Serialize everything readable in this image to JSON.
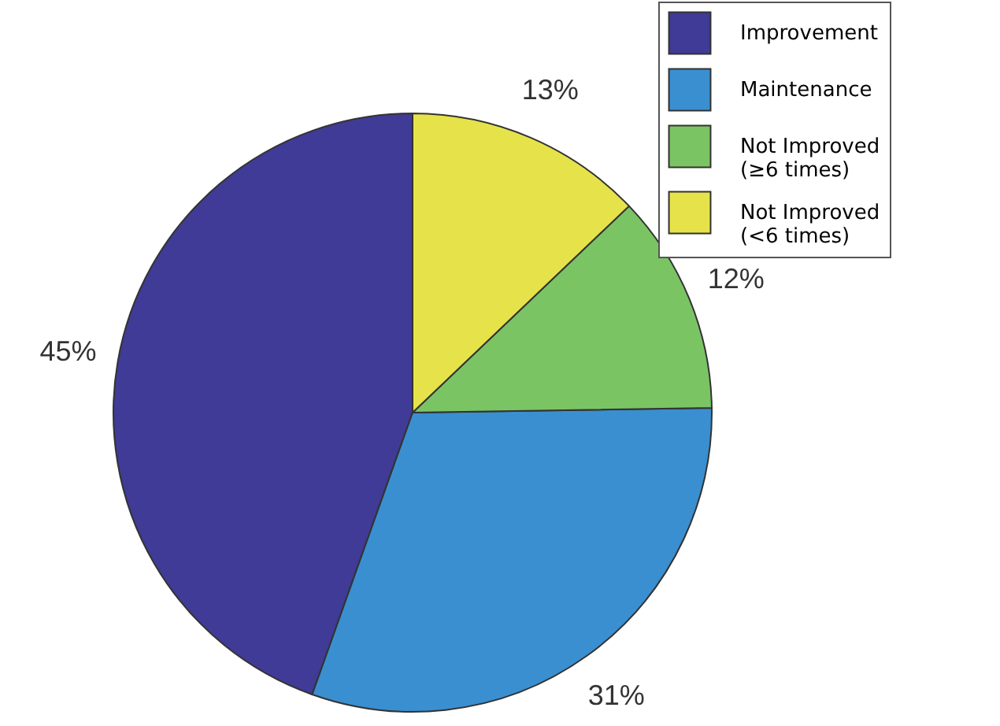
{
  "chart_data": {
    "type": "pie",
    "categories": [
      "Improvement",
      "Maintenance",
      "Not Improved\n (≥6 times)",
      "Not Improved\n (<6 times)"
    ],
    "values": [
      45,
      31,
      12,
      13
    ],
    "colors": [
      "#3f3b96",
      "#3a8fd0",
      "#7bc464",
      "#e6e34a"
    ],
    "value_labels": [
      "45%",
      "31%",
      "12%",
      "13%"
    ],
    "legend": "top right"
  }
}
